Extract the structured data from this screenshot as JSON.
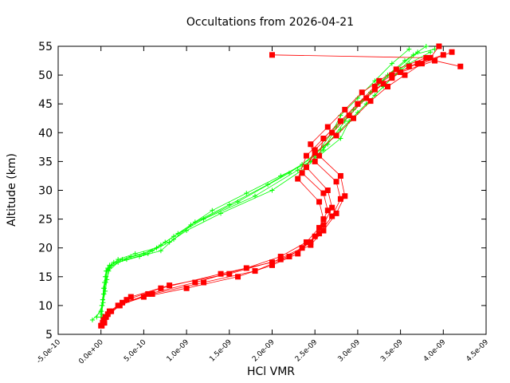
{
  "chart_data": {
    "type": "line",
    "title": "Occultations from 2026-04-21",
    "xlabel": "HCl VMR",
    "ylabel": "Altitude (km)",
    "xlim": [
      -5e-10,
      4.5e-09
    ],
    "ylim": [
      5,
      55
    ],
    "xticks": [
      -5e-10,
      0,
      5e-10,
      1e-09,
      1.5e-09,
      2e-09,
      2.5e-09,
      3e-09,
      3.5e-09,
      4e-09,
      4.5e-09
    ],
    "xtick_labels": [
      "-5.0e-10",
      "0.0e+00",
      "5.0e-10",
      "1.0e-09",
      "1.5e-09",
      "2.0e-09",
      "2.5e-09",
      "3.0e-09",
      "3.5e-09",
      "4.0e-09",
      "4.5e-09"
    ],
    "yticks": [
      5,
      10,
      15,
      20,
      25,
      30,
      35,
      40,
      45,
      50,
      55
    ],
    "ytick_labels": [
      "5",
      "10",
      "15",
      "20",
      "25",
      "30",
      "35",
      "40",
      "45",
      "50",
      "55"
    ],
    "grid": false,
    "series": [
      {
        "color": "#00ff00",
        "marker": "plus",
        "profiles": [
          {
            "x": [
              -1e-10,
              0.0,
              2e-11,
              3e-11,
              5e-11,
              6e-11,
              1e-10,
              3e-10,
              5.5e-10,
              7.5e-10,
              1.05e-09,
              1.6e-09,
              2.2e-09,
              2.5e-09,
              2.7e-09,
              2.8e-09,
              3e-09,
              3.2e-09,
              3.4e-09,
              3.6e-09
            ],
            "y": [
              7.5,
              9,
              11,
              13,
              15,
              16,
              17,
              18,
              19,
              21,
              24,
              28,
              33,
              36,
              40,
              43,
              46,
              49,
              52,
              54.5
            ]
          },
          {
            "x": [
              0.0,
              1e-11,
              3e-11,
              4e-11,
              7e-11,
              1.2e-10,
              2e-10,
              4e-10,
              6.5e-10,
              8.5e-10,
              1.2e-09,
              1.8e-09,
              2.3e-09,
              2.55e-09,
              2.8e-09,
              2.9e-09,
              3.1e-09,
              3.3e-09,
              3.5e-09,
              3.7e-09
            ],
            "y": [
              8,
              10,
              12,
              14,
              16,
              17,
              18,
              19,
              20,
              22,
              25,
              29,
              33.5,
              36,
              39,
              42,
              45,
              48,
              51,
              54
            ]
          },
          {
            "x": [
              5e-12,
              2e-11,
              4e-11,
              6e-11,
              8e-11,
              1.5e-10,
              3.5e-10,
              6e-10,
              8e-10,
              1e-09,
              1.4e-09,
              2e-09,
              2.4e-09,
              2.6e-09,
              2.75e-09,
              2.95e-09,
              3.15e-09,
              3.35e-09,
              3.55e-09,
              3.8e-09
            ],
            "y": [
              9,
              11,
              13,
              15,
              16.5,
              17.5,
              18.5,
              19.5,
              21,
              23,
              26,
              30,
              34,
              37,
              41,
              44,
              47,
              50,
              52.5,
              55
            ]
          },
          {
            "x": [
              1e-11,
              2.5e-11,
              5e-11,
              7e-11,
              1e-10,
              2.5e-10,
              5e-10,
              7e-10,
              9e-10,
              1.3e-09,
              1.7e-09,
              2.1e-09,
              2.45e-09,
              2.65e-09,
              2.85e-09,
              3.05e-09,
              3.25e-09,
              3.45e-09,
              3.65e-09,
              3.9e-09
            ],
            "y": [
              8.5,
              10.5,
              12.5,
              14.5,
              16.5,
              18,
              19,
              20.5,
              22.5,
              26.5,
              29.5,
              32.5,
              35,
              38,
              42,
              45.5,
              48.5,
              51,
              53.5,
              54.5
            ]
          },
          {
            "x": [
              -5e-11,
              1.5e-11,
              3.5e-11,
              5.5e-11,
              9e-11,
              2e-10,
              4.5e-10,
              7e-10,
              8.5e-10,
              1.1e-09,
              1.5e-09,
              1.95e-09,
              2.35e-09,
              2.6e-09,
              2.8e-09,
              3e-09,
              3.2e-09,
              3.4e-09,
              3.6e-09,
              3.85e-09
            ],
            "y": [
              8,
              10,
              12,
              14,
              16,
              17.5,
              18.5,
              19.5,
              21.5,
              24.5,
              27.5,
              31,
              34.5,
              37.5,
              40.5,
              43.5,
              46.5,
              49.5,
              52,
              54
            ]
          }
        ]
      },
      {
        "color": "#ff0000",
        "marker": "square",
        "profiles": [
          {
            "x": [
              1e-11,
              5e-11,
              2e-10,
              5e-10,
              1e-09,
              1.6e-09,
              2e-09,
              2.3e-09,
              2.5e-09,
              2.6e-09,
              2.55e-09,
              2.3e-09,
              2.4e-09,
              2.6e-09,
              2.8e-09,
              3e-09,
              3.2e-09,
              3.4e-09,
              3.7e-09,
              4e-09
            ],
            "y": [
              6.5,
              8,
              10,
              11.5,
              13,
              15,
              17,
              19,
              22,
              25,
              28,
              32,
              36,
              39,
              42,
              45,
              48,
              50,
              52,
              53.5
            ]
          },
          {
            "x": [
              2e-11,
              8e-11,
              2.5e-10,
              6e-10,
              1.2e-09,
              1.8e-09,
              2.2e-09,
              2.45e-09,
              2.6e-09,
              2.7e-09,
              2.65e-09,
              2.4e-09,
              2.5e-09,
              2.7e-09,
              2.9e-09,
              3.1e-09,
              3.3e-09,
              3.5e-09,
              3.9e-09,
              4.2e-09
            ],
            "y": [
              7,
              8.5,
              10.5,
              12,
              14,
              16,
              18.5,
              21,
              24,
              27,
              30,
              34,
              37,
              40,
              43,
              46,
              48.5,
              50.5,
              52.5,
              51.5
            ]
          },
          {
            "x": [
              3e-11,
              1e-10,
              3e-10,
              7e-10,
              1.4e-09,
              2e-09,
              2.35e-09,
              2.55e-09,
              2.7e-09,
              2.8e-09,
              2.75e-09,
              2.5e-09,
              2.45e-09,
              2.65e-09,
              2.85e-09,
              3.05e-09,
              3.25e-09,
              3.45e-09,
              3.8e-09,
              2e-09
            ],
            "y": [
              7.5,
              9,
              11,
              13,
              15.5,
              17.5,
              20,
              22.5,
              25.5,
              28.5,
              31.5,
              35,
              38,
              41,
              44,
              47,
              49,
              51,
              53,
              53.5
            ]
          },
          {
            "x": [
              0.0,
              6e-11,
              2.2e-10,
              5.5e-10,
              1.1e-09,
              1.7e-09,
              2.1e-09,
              2.4e-09,
              2.55e-09,
              2.65e-09,
              2.6e-09,
              2.35e-09,
              2.5e-09,
              2.75e-09,
              2.95e-09,
              3.15e-09,
              3.35e-09,
              3.55e-09,
              3.75e-09,
              4.1e-09
            ],
            "y": [
              6.5,
              8,
              10,
              12,
              14,
              16.5,
              18.5,
              21,
              23.5,
              26.5,
              29.5,
              33,
              36.5,
              39.5,
              42.5,
              45.5,
              48,
              50,
              52,
              54
            ]
          },
          {
            "x": [
              4e-11,
              1.2e-10,
              3.5e-10,
              8e-10,
              1.5e-09,
              2.1e-09,
              2.45e-09,
              2.6e-09,
              2.75e-09,
              2.85e-09,
              2.8e-09,
              2.55e-09,
              2.6e-09,
              2.8e-09,
              3e-09,
              3.2e-09,
              3.4e-09,
              3.6e-09,
              3.85e-09,
              3.95e-09
            ],
            "y": [
              7,
              9,
              11.5,
              13.5,
              15.5,
              18,
              20.5,
              23,
              26,
              29,
              32.5,
              36,
              39,
              42,
              45,
              47.5,
              49.5,
              51.5,
              53,
              55
            ]
          }
        ]
      }
    ]
  }
}
